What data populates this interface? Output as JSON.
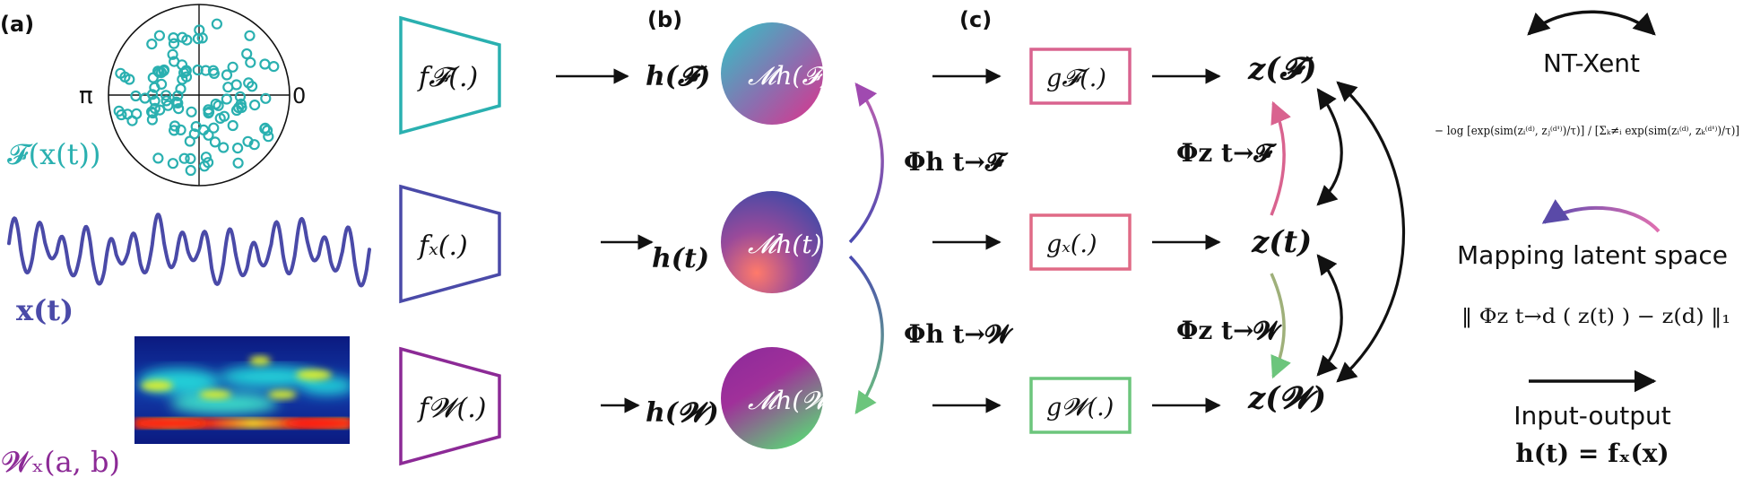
{
  "panels": {
    "a": "(a)",
    "b": "(b)",
    "c": "(c)"
  },
  "colors": {
    "teal": "#2ab0b0",
    "indigo": "#4a4aa8",
    "purple": "#8c2a96",
    "pink": "#d9638f",
    "rose": "#e06a86",
    "green": "#6cc57c",
    "black": "#111111"
  },
  "inputs": {
    "fourier_label": "𝓕(x(t))",
    "signal_label": "x(t)",
    "wavelet_label": "𝓦ₓ(a, b)",
    "polar_pi": "π",
    "polar_zero": "0"
  },
  "encoders": {
    "f_F": "f𝓕(.)",
    "f_x": "fₓ(.)",
    "f_W": "f𝓦(.)"
  },
  "latents": {
    "h_F": "h(𝓕)",
    "h_t": "h(t)",
    "h_W": "h(𝓦)",
    "M_F": "𝓜h(𝓕)",
    "M_t": "𝓜h(t)",
    "M_W": "𝓜h(𝓦)"
  },
  "mappings": {
    "phi_h_F": "Φh t→𝓕",
    "phi_h_W": "Φh t→𝓦",
    "phi_z_F": "Φz t→𝓕",
    "phi_z_W": "Φz t→𝓦"
  },
  "projectors": {
    "g_F": "g𝓕(.)",
    "g_x": "gₓ(.)",
    "g_W": "g𝓦(.)"
  },
  "outputs": {
    "z_F": "z(𝓕)",
    "z_t": "z(t)",
    "z_W": "z(𝓦)"
  },
  "legend": {
    "ntxent_title": "NT-Xent",
    "ntxent_formula": "− log [exp(sim(zᵢ⁽ᵈ⁾, zⱼ⁽ᵈ'⁾)/τ)] / [Σₖ≠ᵢ exp(sim(zᵢ⁽ᵈ⁾, zₖ⁽ᵈ'⁾)/τ)]",
    "mapping_title": "Mapping latent space",
    "mapping_formula": "‖ Φz t→d ( z(t) ) − z(d) ‖₁",
    "io_title": "Input-output",
    "io_formula": "h(t) = fₓ(x)"
  }
}
